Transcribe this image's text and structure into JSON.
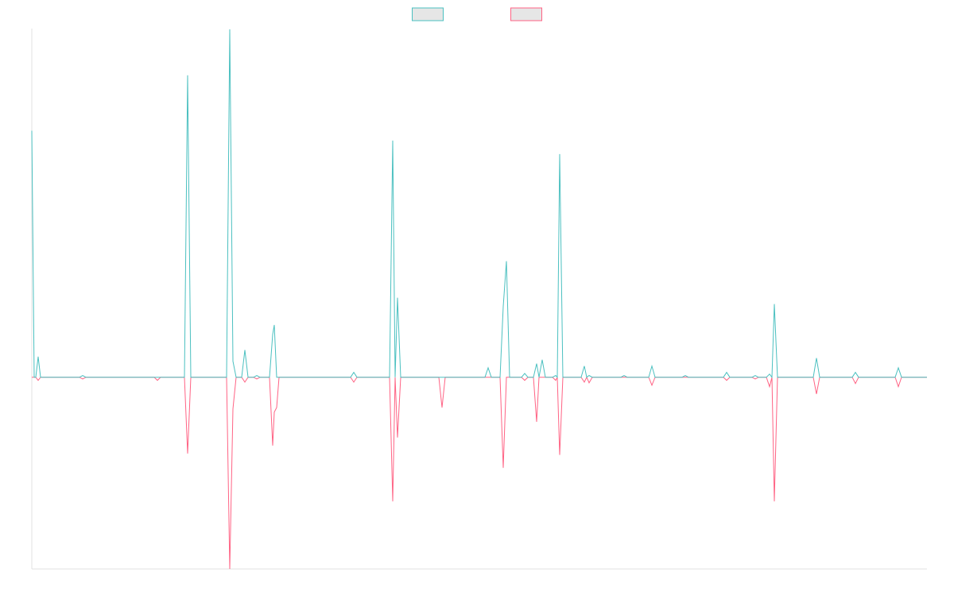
{
  "chart_data": {
    "type": "line",
    "x": [
      0,
      3,
      5,
      8,
      11,
      60,
      64,
      68,
      154,
      158,
      162,
      192,
      196,
      200,
      245,
      249,
      253,
      257,
      264,
      268,
      272,
      279,
      283,
      287,
      299,
      303,
      305,
      308,
      311,
      401,
      405,
      409,
      450,
      454,
      457,
      460,
      464,
      512,
      516,
      520,
      570,
      574,
      578,
      589,
      593,
      597,
      601,
      616,
      620,
      624,
      631,
      635,
      638,
      642,
      646,
      655,
      659,
      661,
      664,
      668,
      691,
      695,
      698,
      701,
      705,
      741,
      745,
      749,
      776,
      780,
      784,
      818,
      822,
      826,
      870,
      874,
      878,
      906,
      910,
      914,
      924,
      928,
      931,
      934,
      938,
      983,
      987,
      991,
      1032,
      1036,
      1040,
      1086,
      1090,
      1094,
      1126
    ],
    "xlim": [
      0,
      1126
    ],
    "ylim": [
      -55,
      100
    ],
    "series": [
      {
        "color": "#4bc0c0",
        "values": [
          70.7,
          0,
          0,
          5.9,
          0,
          0,
          0.5,
          0,
          0,
          0,
          0,
          0,
          86.6,
          0,
          0,
          99.8,
          4.6,
          0,
          0,
          7.8,
          0,
          0,
          0.5,
          0,
          0,
          12.3,
          15,
          0,
          0,
          0,
          1.4,
          0,
          0,
          67.9,
          0,
          22.8,
          0,
          0,
          0,
          0,
          0,
          2.7,
          0,
          0,
          20.3,
          33.3,
          0,
          0,
          1.1,
          0,
          0,
          3.9,
          0,
          5,
          0,
          0,
          0.5,
          0,
          64,
          0,
          0,
          3.2,
          0,
          0.5,
          0,
          0,
          0.5,
          0,
          0,
          3.2,
          0,
          0,
          0.5,
          0,
          0,
          1.4,
          0,
          0,
          0.5,
          0,
          0,
          0.9,
          0,
          21,
          0,
          0,
          5.5,
          0,
          0,
          1.4,
          0,
          0,
          2.7,
          0,
          0
        ]
      },
      {
        "color": "#ff6384",
        "values": [
          0,
          0,
          0,
          -0.9,
          0,
          0,
          -0.5,
          0,
          0,
          -0.9,
          0,
          0,
          -21.9,
          0,
          0,
          -55,
          -9.1,
          0,
          0,
          -1.4,
          0,
          0,
          -0.5,
          0,
          0,
          -19.6,
          -10,
          -8.7,
          0,
          0,
          -1.4,
          0,
          0,
          -35.6,
          0,
          -17.3,
          0,
          0,
          -8.7,
          0,
          0,
          0,
          0,
          0,
          -26,
          0,
          0,
          0,
          -0.9,
          0,
          0,
          -12.8,
          0,
          0,
          0,
          0,
          -0.9,
          0,
          -22.3,
          0,
          0,
          -1.4,
          0,
          -1.6,
          0,
          0,
          0,
          0,
          0,
          -2.3,
          0,
          0,
          0,
          0,
          0,
          -0.9,
          0,
          0,
          -0.5,
          0,
          0,
          -2.7,
          0,
          -35.6,
          0,
          0,
          -4.8,
          0,
          0,
          -1.8,
          0,
          0,
          -2.7,
          0,
          0
        ]
      }
    ]
  }
}
